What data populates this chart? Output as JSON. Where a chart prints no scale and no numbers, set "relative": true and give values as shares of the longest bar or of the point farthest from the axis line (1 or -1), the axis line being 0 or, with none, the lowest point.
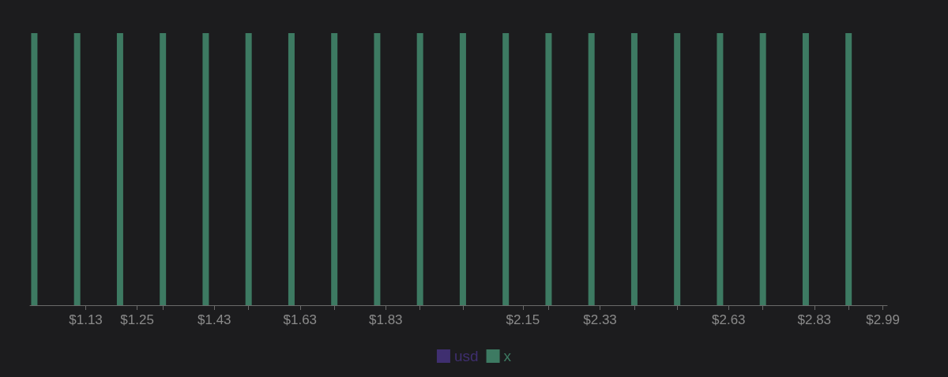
{
  "chart_data": {
    "type": "bar",
    "relative": true,
    "x": [
      1.01,
      1.11,
      1.21,
      1.31,
      1.41,
      1.51,
      1.61,
      1.71,
      1.81,
      1.91,
      2.01,
      2.11,
      2.21,
      2.31,
      2.41,
      2.51,
      2.61,
      2.71,
      2.81,
      2.91
    ],
    "series": [
      {
        "name": "usd",
        "color": "#3f2f70",
        "values": [
          null,
          null,
          null,
          null,
          null,
          null,
          null,
          null,
          null,
          null,
          null,
          null,
          null,
          null,
          null,
          null,
          null,
          null,
          null,
          null
        ]
      },
      {
        "name": "x",
        "color": "#3d7a62",
        "values": [
          1,
          1,
          1,
          1,
          1,
          1,
          1,
          1,
          1,
          1,
          1,
          1,
          1,
          1,
          1,
          1,
          1,
          1,
          1,
          1
        ]
      }
    ],
    "xlim": [
      1.0,
      3.0
    ],
    "xticks": [
      {
        "value": 1.13,
        "label": "$1.13"
      },
      {
        "value": 1.25,
        "label": "$1.25"
      },
      {
        "value": 1.31,
        "label": null
      },
      {
        "value": 1.43,
        "label": "$1.43"
      },
      {
        "value": 1.51,
        "label": null
      },
      {
        "value": 1.63,
        "label": "$1.63"
      },
      {
        "value": 1.71,
        "label": null
      },
      {
        "value": 1.83,
        "label": "$1.83"
      },
      {
        "value": 1.91,
        "label": null
      },
      {
        "value": 2.01,
        "label": null
      },
      {
        "value": 2.15,
        "label": "$2.15"
      },
      {
        "value": 2.21,
        "label": null
      },
      {
        "value": 2.33,
        "label": "$2.33"
      },
      {
        "value": 2.41,
        "label": null
      },
      {
        "value": 2.51,
        "label": null
      },
      {
        "value": 2.63,
        "label": "$2.63"
      },
      {
        "value": 2.71,
        "label": null
      },
      {
        "value": 2.83,
        "label": "$2.83"
      },
      {
        "value": 2.91,
        "label": null
      },
      {
        "value": 2.99,
        "label": "$2.99"
      }
    ],
    "legend": "bottom",
    "grid": false
  }
}
